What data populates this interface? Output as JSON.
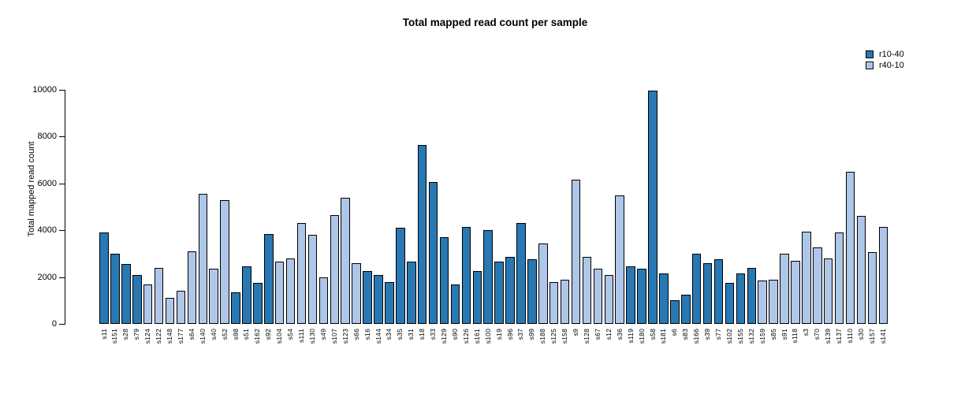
{
  "title": "Total mapped read count per sample",
  "legend": {
    "items": [
      {
        "label": "r10-40",
        "color": "#2878b4"
      },
      {
        "label": "r40-10",
        "color": "#aec6e8"
      }
    ]
  },
  "chart_data": {
    "type": "bar",
    "title": "Total mapped read count per sample",
    "xlabel": "",
    "ylabel": "Total mapped read count",
    "ylim": [
      0,
      10000
    ],
    "yticks": [
      0,
      2000,
      4000,
      6000,
      8000,
      10000
    ],
    "grid": false,
    "legend_position": "top-right",
    "colors": {
      "r10-40": "#2878b4",
      "r40-10": "#aec6e8"
    },
    "samples": [
      {
        "label": "s11",
        "value": 3900,
        "group": "r10-40"
      },
      {
        "label": "s151",
        "value": 3000,
        "group": "r10-40"
      },
      {
        "label": "s28",
        "value": 2550,
        "group": "r10-40"
      },
      {
        "label": "s79",
        "value": 2100,
        "group": "r10-40"
      },
      {
        "label": "s124",
        "value": 1700,
        "group": "r40-10"
      },
      {
        "label": "s122",
        "value": 2400,
        "group": "r40-10"
      },
      {
        "label": "s148",
        "value": 1100,
        "group": "r40-10"
      },
      {
        "label": "s177",
        "value": 1400,
        "group": "r40-10"
      },
      {
        "label": "s64",
        "value": 3100,
        "group": "r40-10"
      },
      {
        "label": "s140",
        "value": 5550,
        "group": "r40-10"
      },
      {
        "label": "s40",
        "value": 2350,
        "group": "r40-10"
      },
      {
        "label": "s52",
        "value": 5300,
        "group": "r40-10"
      },
      {
        "label": "s98",
        "value": 1350,
        "group": "r10-40"
      },
      {
        "label": "s51",
        "value": 2450,
        "group": "r10-40"
      },
      {
        "label": "s162",
        "value": 1750,
        "group": "r10-40"
      },
      {
        "label": "s92",
        "value": 3850,
        "group": "r10-40"
      },
      {
        "label": "s104",
        "value": 2650,
        "group": "r40-10"
      },
      {
        "label": "s54",
        "value": 2800,
        "group": "r40-10"
      },
      {
        "label": "s111",
        "value": 4300,
        "group": "r40-10"
      },
      {
        "label": "s130",
        "value": 3800,
        "group": "r40-10"
      },
      {
        "label": "s49",
        "value": 2000,
        "group": "r40-10"
      },
      {
        "label": "s107",
        "value": 4650,
        "group": "r40-10"
      },
      {
        "label": "s123",
        "value": 5400,
        "group": "r40-10"
      },
      {
        "label": "s66",
        "value": 2600,
        "group": "r40-10"
      },
      {
        "label": "s16",
        "value": 2250,
        "group": "r10-40"
      },
      {
        "label": "s144",
        "value": 2100,
        "group": "r10-40"
      },
      {
        "label": "s34",
        "value": 1800,
        "group": "r10-40"
      },
      {
        "label": "s35",
        "value": 4100,
        "group": "r10-40"
      },
      {
        "label": "s31",
        "value": 2650,
        "group": "r10-40"
      },
      {
        "label": "s18",
        "value": 7650,
        "group": "r10-40"
      },
      {
        "label": "s33",
        "value": 6050,
        "group": "r10-40"
      },
      {
        "label": "s129",
        "value": 3700,
        "group": "r10-40"
      },
      {
        "label": "s90",
        "value": 1700,
        "group": "r10-40"
      },
      {
        "label": "s126",
        "value": 4150,
        "group": "r10-40"
      },
      {
        "label": "s161",
        "value": 2250,
        "group": "r10-40"
      },
      {
        "label": "s100",
        "value": 4000,
        "group": "r10-40"
      },
      {
        "label": "s19",
        "value": 2650,
        "group": "r10-40"
      },
      {
        "label": "s96",
        "value": 2850,
        "group": "r10-40"
      },
      {
        "label": "s37",
        "value": 4300,
        "group": "r10-40"
      },
      {
        "label": "s99",
        "value": 2750,
        "group": "r10-40"
      },
      {
        "label": "s188",
        "value": 3450,
        "group": "r40-10"
      },
      {
        "label": "s125",
        "value": 1800,
        "group": "r40-10"
      },
      {
        "label": "s158",
        "value": 1900,
        "group": "r40-10"
      },
      {
        "label": "s9",
        "value": 6150,
        "group": "r40-10"
      },
      {
        "label": "s128",
        "value": 2850,
        "group": "r40-10"
      },
      {
        "label": "s67",
        "value": 2350,
        "group": "r40-10"
      },
      {
        "label": "s12",
        "value": 2100,
        "group": "r40-10"
      },
      {
        "label": "s36",
        "value": 5500,
        "group": "r40-10"
      },
      {
        "label": "s119",
        "value": 2450,
        "group": "r10-40"
      },
      {
        "label": "s180",
        "value": 2350,
        "group": "r10-40"
      },
      {
        "label": "s58",
        "value": 9950,
        "group": "r10-40"
      },
      {
        "label": "s181",
        "value": 2150,
        "group": "r10-40"
      },
      {
        "label": "s6",
        "value": 1000,
        "group": "r10-40"
      },
      {
        "label": "s83",
        "value": 1250,
        "group": "r10-40"
      },
      {
        "label": "s166",
        "value": 3000,
        "group": "r10-40"
      },
      {
        "label": "s39",
        "value": 2600,
        "group": "r10-40"
      },
      {
        "label": "s77",
        "value": 2750,
        "group": "r10-40"
      },
      {
        "label": "s102",
        "value": 1750,
        "group": "r10-40"
      },
      {
        "label": "s155",
        "value": 2150,
        "group": "r10-40"
      },
      {
        "label": "s132",
        "value": 2400,
        "group": "r10-40"
      },
      {
        "label": "s159",
        "value": 1850,
        "group": "r40-10"
      },
      {
        "label": "s85",
        "value": 1900,
        "group": "r40-10"
      },
      {
        "label": "s91",
        "value": 3000,
        "group": "r40-10"
      },
      {
        "label": "s118",
        "value": 2700,
        "group": "r40-10"
      },
      {
        "label": "s3",
        "value": 3950,
        "group": "r40-10"
      },
      {
        "label": "s70",
        "value": 3250,
        "group": "r40-10"
      },
      {
        "label": "s139",
        "value": 2800,
        "group": "r40-10"
      },
      {
        "label": "s137",
        "value": 3900,
        "group": "r40-10"
      },
      {
        "label": "s110",
        "value": 6500,
        "group": "r40-10"
      },
      {
        "label": "s30",
        "value": 4600,
        "group": "r40-10"
      },
      {
        "label": "s157",
        "value": 3050,
        "group": "r40-10"
      },
      {
        "label": "s141",
        "value": 4150,
        "group": "r40-10"
      }
    ]
  }
}
